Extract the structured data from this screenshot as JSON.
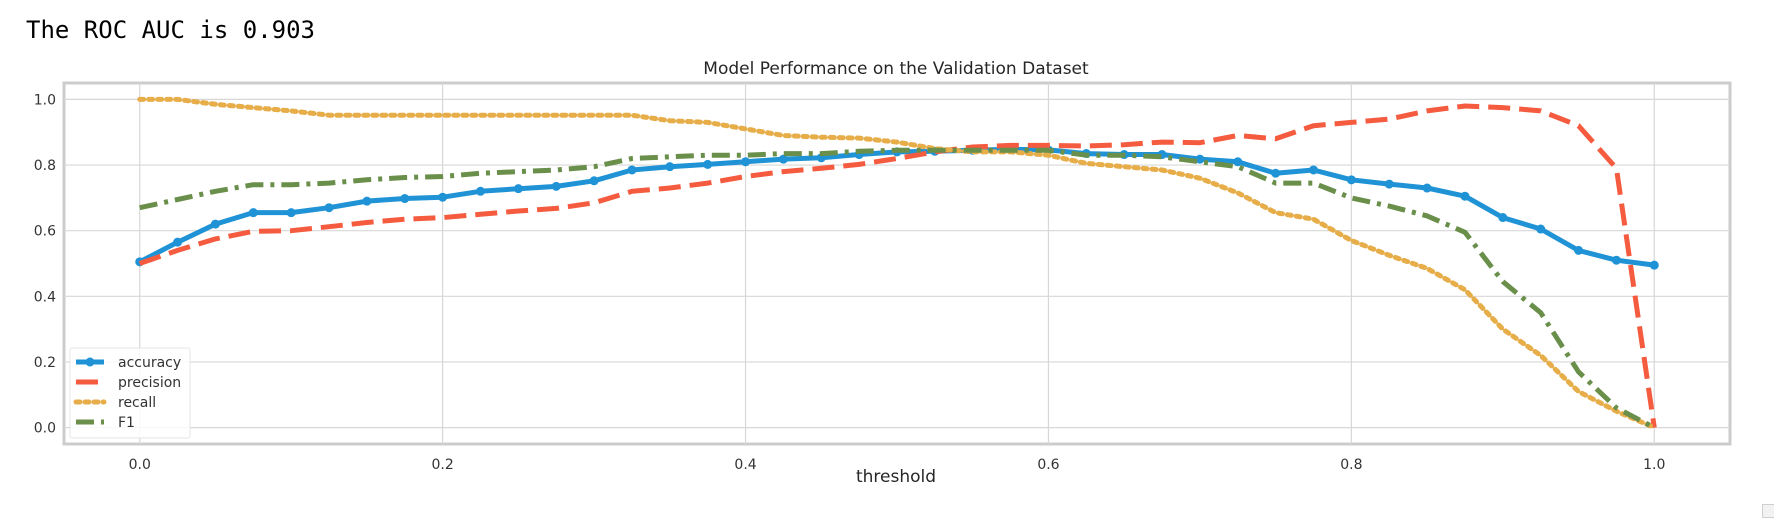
{
  "output_text": "The ROC AUC is 0.903",
  "chart_data": {
    "type": "line",
    "title": "Model Performance on the Validation Dataset",
    "xlabel": "threshold",
    "ylabel": "",
    "xlim": [
      -0.05,
      1.05
    ],
    "ylim": [
      -0.05,
      1.05
    ],
    "xticks": [
      "0.0",
      "0.2",
      "0.4",
      "0.6",
      "0.8",
      "1.0"
    ],
    "yticks": [
      "0.0",
      "0.2",
      "0.4",
      "0.6",
      "0.8",
      "1.0"
    ],
    "grid": true,
    "legend_position": "lower-left",
    "x": [
      0.0,
      0.025,
      0.05,
      0.075,
      0.1,
      0.125,
      0.15,
      0.175,
      0.2,
      0.225,
      0.25,
      0.275,
      0.3,
      0.325,
      0.35,
      0.375,
      0.4,
      0.425,
      0.45,
      0.475,
      0.5,
      0.525,
      0.55,
      0.575,
      0.6,
      0.625,
      0.65,
      0.675,
      0.7,
      0.725,
      0.75,
      0.775,
      0.8,
      0.825,
      0.85,
      0.875,
      0.9,
      0.925,
      0.95,
      0.975,
      1.0
    ],
    "series": [
      {
        "name": "accuracy",
        "color": "#1f93d5",
        "style": "solid-marker",
        "values": [
          0.505,
          0.565,
          0.62,
          0.655,
          0.655,
          0.67,
          0.69,
          0.698,
          0.702,
          0.72,
          0.728,
          0.735,
          0.752,
          0.785,
          0.795,
          0.802,
          0.81,
          0.818,
          0.822,
          0.832,
          0.84,
          0.842,
          0.845,
          0.848,
          0.846,
          0.835,
          0.832,
          0.832,
          0.818,
          0.81,
          0.775,
          0.785,
          0.755,
          0.742,
          0.73,
          0.705,
          0.64,
          0.605,
          0.54,
          0.51,
          0.495
        ]
      },
      {
        "name": "precision",
        "color": "#f45b3f",
        "style": "dashed",
        "values": [
          0.5,
          0.54,
          0.575,
          0.598,
          0.6,
          0.612,
          0.625,
          0.635,
          0.64,
          0.65,
          0.66,
          0.668,
          0.685,
          0.72,
          0.73,
          0.745,
          0.765,
          0.78,
          0.79,
          0.802,
          0.82,
          0.84,
          0.855,
          0.86,
          0.86,
          0.858,
          0.862,
          0.87,
          0.868,
          0.89,
          0.88,
          0.92,
          0.93,
          0.94,
          0.965,
          0.98,
          0.975,
          0.965,
          0.92,
          0.79,
          0.0
        ]
      },
      {
        "name": "recall",
        "color": "#e6ad48",
        "style": "dotted",
        "values": [
          1.0,
          1.0,
          0.985,
          0.975,
          0.965,
          0.952,
          0.952,
          0.952,
          0.952,
          0.952,
          0.952,
          0.952,
          0.952,
          0.952,
          0.935,
          0.93,
          0.91,
          0.89,
          0.885,
          0.882,
          0.87,
          0.85,
          0.84,
          0.84,
          0.83,
          0.805,
          0.795,
          0.785,
          0.76,
          0.715,
          0.655,
          0.635,
          0.57,
          0.525,
          0.485,
          0.42,
          0.3,
          0.22,
          0.11,
          0.05,
          0.0
        ]
      },
      {
        "name": "F1",
        "color": "#6a8f4b",
        "style": "dashdot",
        "values": [
          0.67,
          0.695,
          0.72,
          0.74,
          0.74,
          0.745,
          0.755,
          0.762,
          0.765,
          0.775,
          0.78,
          0.785,
          0.795,
          0.82,
          0.825,
          0.83,
          0.83,
          0.835,
          0.835,
          0.842,
          0.845,
          0.845,
          0.845,
          0.845,
          0.845,
          0.83,
          0.83,
          0.825,
          0.81,
          0.795,
          0.745,
          0.745,
          0.7,
          0.675,
          0.645,
          0.595,
          0.445,
          0.35,
          0.17,
          0.06,
          0.0
        ]
      }
    ]
  }
}
